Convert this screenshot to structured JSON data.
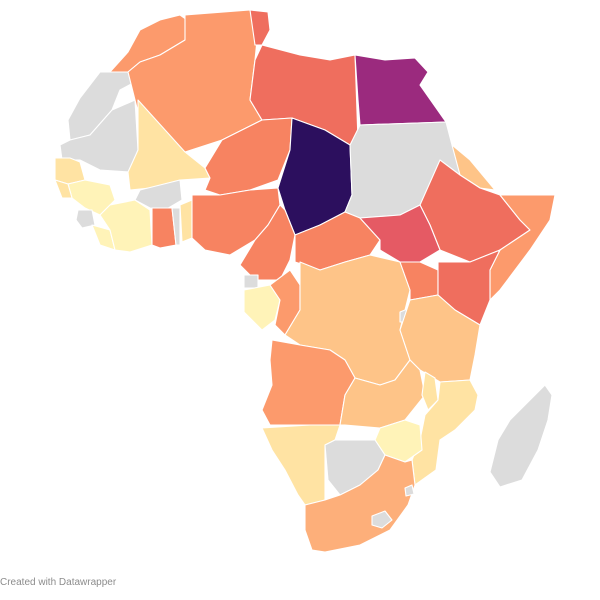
{
  "map": {
    "no_data_color": "#dcdcdc",
    "palette": {
      "c1": "#fff3b8",
      "c2": "#ffe3a3",
      "c3": "#fec488",
      "c4": "#fdaf7a",
      "c5": "#fc9a6c",
      "c6": "#f78361",
      "c7": "#ef6e5e",
      "c8": "#e55a64",
      "c9": "#9b2a7e",
      "c10": "#2c0f5e"
    }
  },
  "footer": {
    "credit": "Created with Datawrapper"
  }
}
